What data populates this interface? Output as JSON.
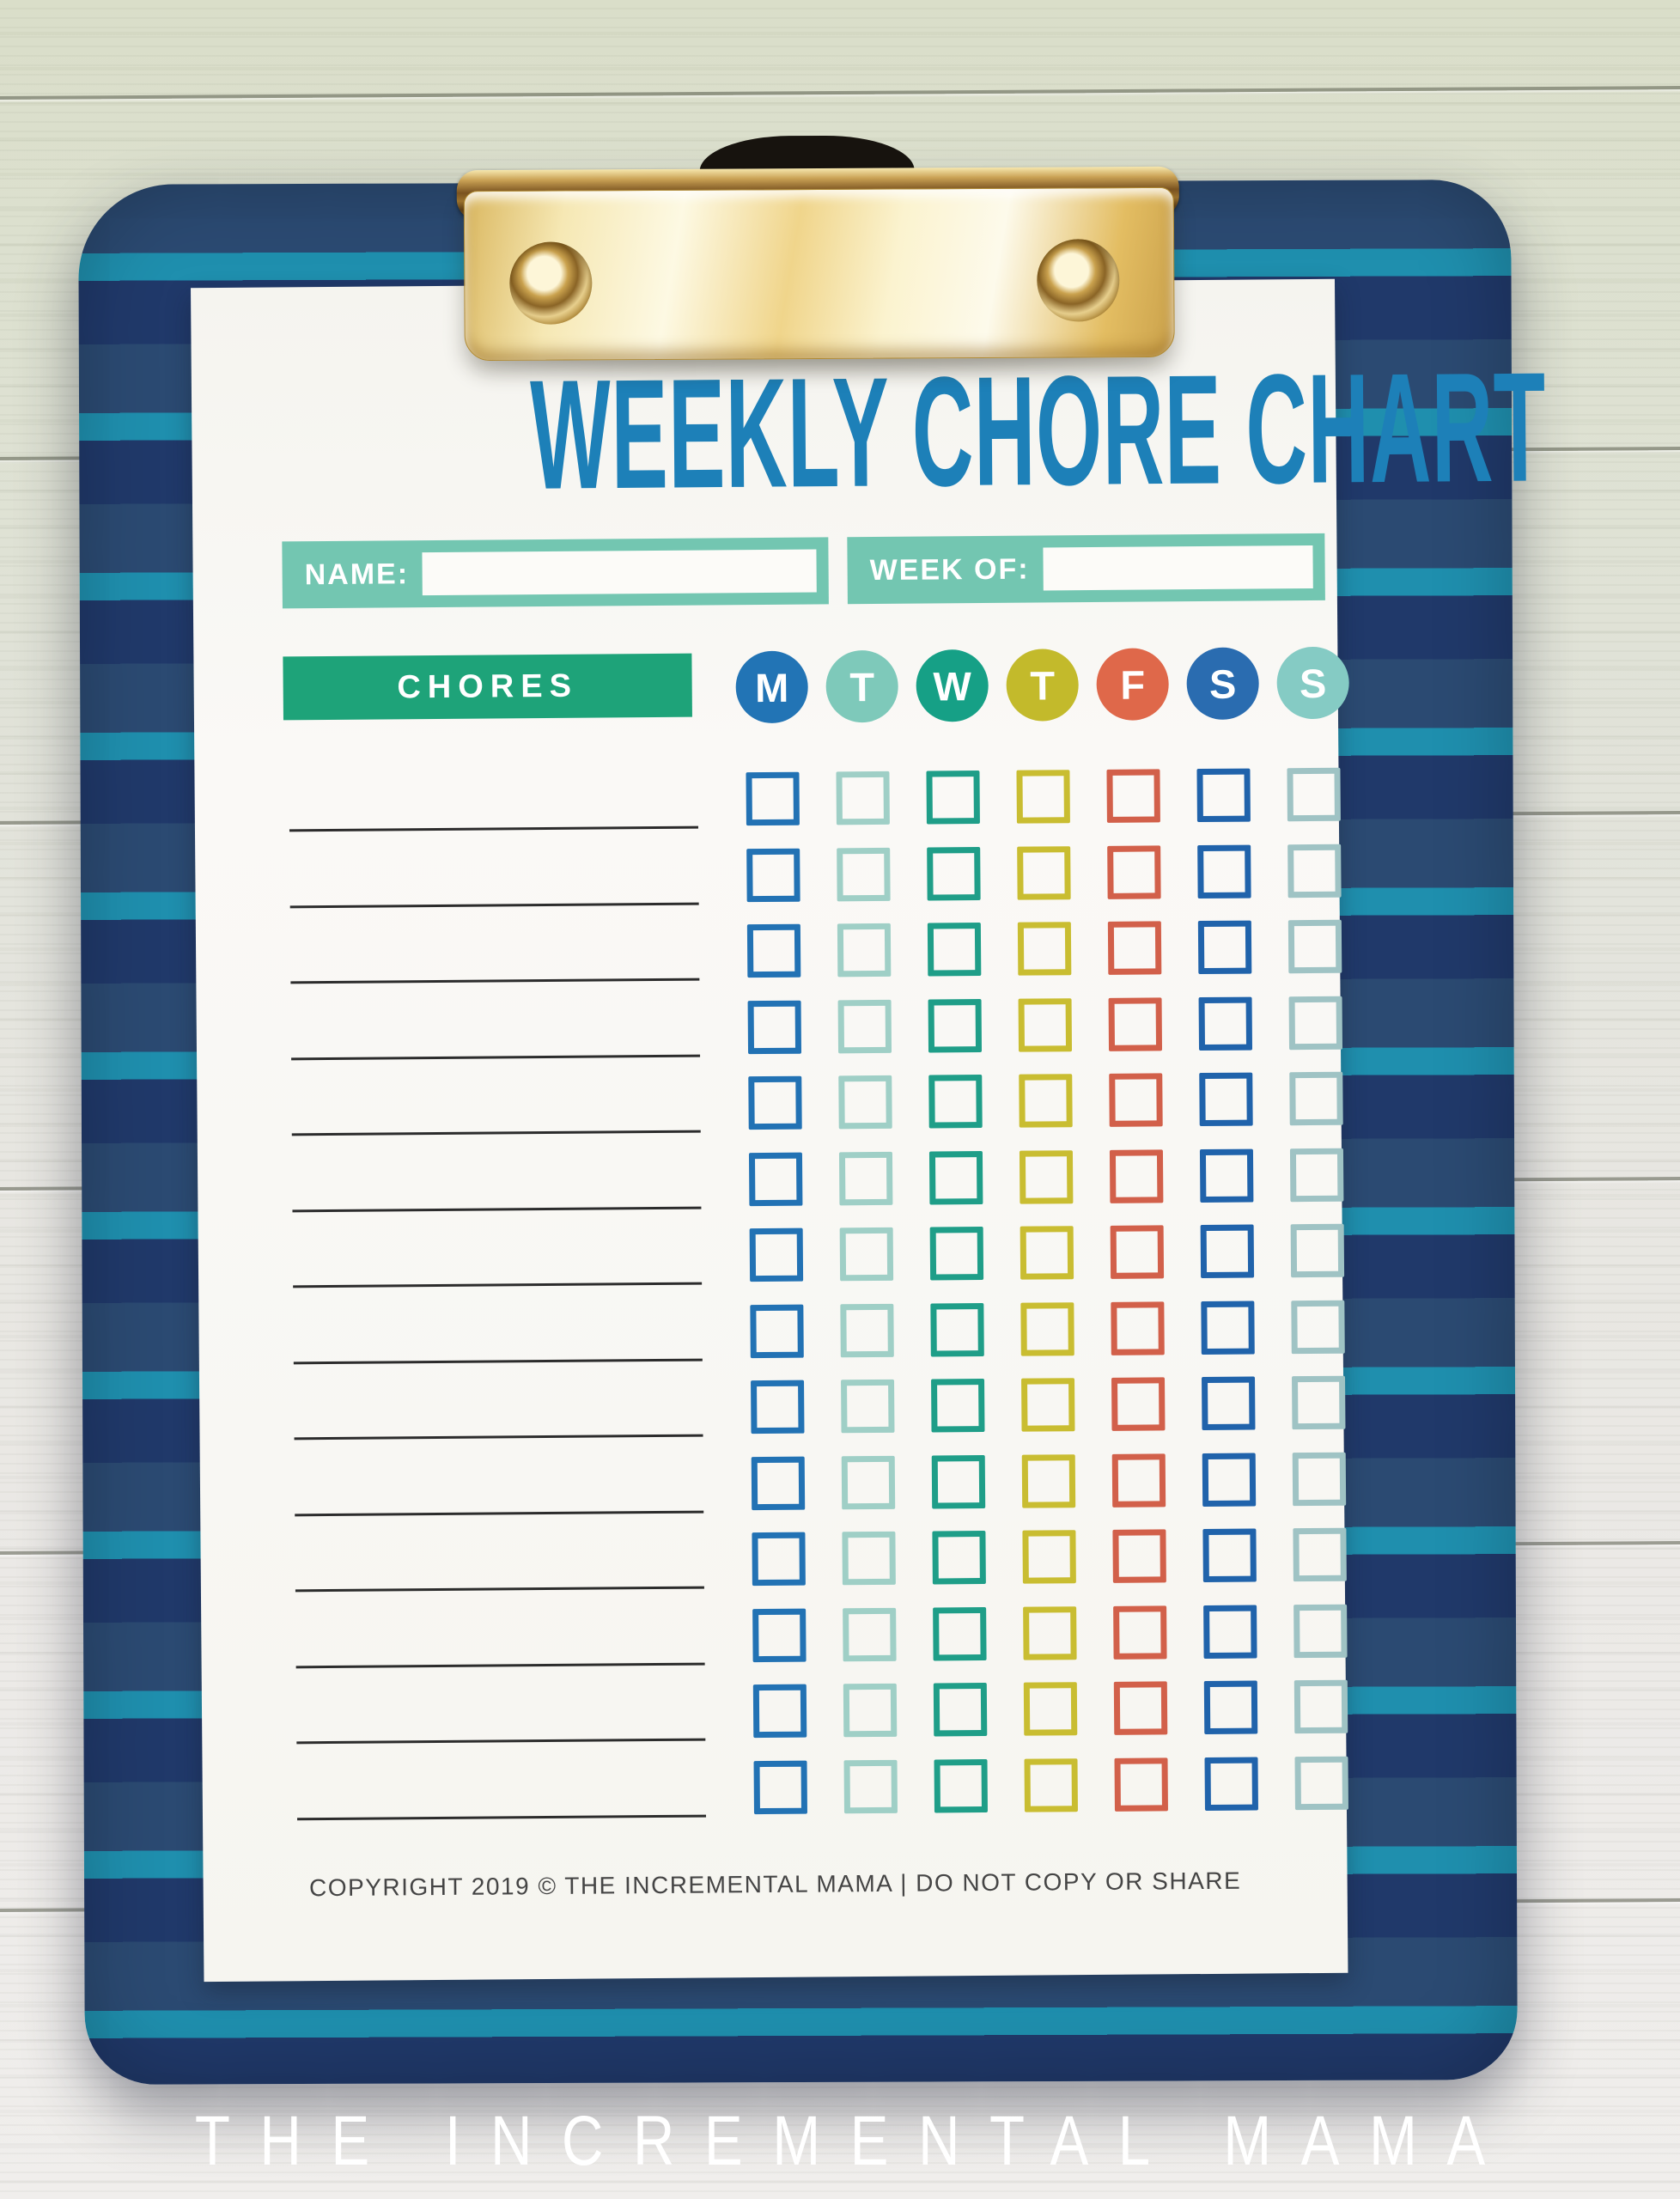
{
  "title": "WEEKLY CHORE CHART",
  "fields": {
    "name_label": "NAME:",
    "name_value": "",
    "week_label": "WEEK OF:",
    "week_value": ""
  },
  "table": {
    "chores_header": "CHORES",
    "rows": 14,
    "days": [
      {
        "label": "M",
        "circle_color": "#2274b5",
        "box_color": "#2272b4"
      },
      {
        "label": "T",
        "circle_color": "#7ec9ba",
        "box_color": "#9fcfc6"
      },
      {
        "label": "W",
        "circle_color": "#16a086",
        "box_color": "#1f9e88"
      },
      {
        "label": "T",
        "circle_color": "#c3ba2b",
        "box_color": "#c9bd31"
      },
      {
        "label": "F",
        "circle_color": "#df684a",
        "box_color": "#d2604a"
      },
      {
        "label": "S",
        "circle_color": "#2a6cb0",
        "box_color": "#2063ab"
      },
      {
        "label": "S",
        "circle_color": "#85cbc4",
        "box_color": "#9fc3c4"
      }
    ]
  },
  "footer": {
    "copyright": "COPYRIGHT 2019 © THE INCREMENTAL MAMA | DO NOT COPY OR SHARE"
  },
  "caption": "THE INCREMENTAL MAMA",
  "colors": {
    "title_blue": "#1d80b8",
    "teal_band": "#73c6b1",
    "green_band": "#1ea379",
    "clipboard_navy_dark": "#20396a",
    "clipboard_navy_light": "#2b4a72",
    "clipboard_stripe_teal": "#1f8fae",
    "clip_gold": "#e3bd62",
    "paper": "#f8f7f3",
    "chore_line": "#2c2c2c",
    "copyright_gray": "#454545"
  }
}
